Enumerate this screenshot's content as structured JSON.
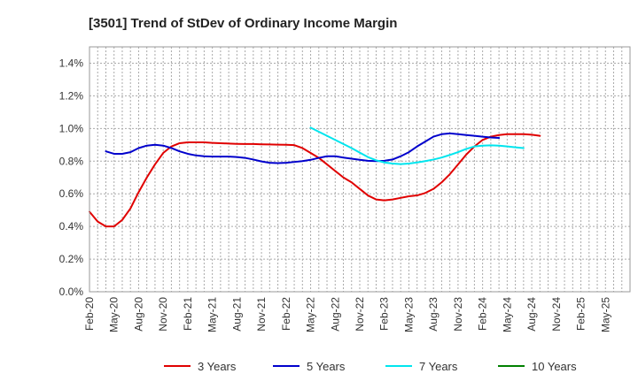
{
  "chart_data": {
    "type": "line",
    "title": "[3501]  Trend of StDev of Ordinary Income Margin",
    "xlabel": "",
    "ylabel": "",
    "ylim": [
      0,
      1.5
    ],
    "yticks": [
      0,
      0.2,
      0.4,
      0.6,
      0.8,
      1.0,
      1.2,
      1.4
    ],
    "ytick_labels": [
      "0.0%",
      "0.2%",
      "0.4%",
      "0.6%",
      "0.8%",
      "1.0%",
      "1.2%",
      "1.4%"
    ],
    "x_tick_labels": [
      "Feb-20",
      "May-20",
      "Aug-20",
      "Nov-20",
      "Feb-21",
      "May-21",
      "Aug-21",
      "Nov-21",
      "Feb-22",
      "May-22",
      "Aug-22",
      "Nov-22",
      "Feb-23",
      "May-23",
      "Aug-23",
      "Nov-23",
      "Feb-24",
      "May-24",
      "Aug-24",
      "Nov-24",
      "Feb-25",
      "May-25"
    ],
    "grid": true,
    "legend_position": "bottom",
    "series": [
      {
        "name": "3 Years",
        "color": "#e00000",
        "start_index": 0,
        "values": [
          0.49,
          0.43,
          0.4,
          0.4,
          0.44,
          0.51,
          0.61,
          0.7,
          0.78,
          0.85,
          0.89,
          0.91,
          0.915,
          0.915,
          0.915,
          0.912,
          0.91,
          0.908,
          0.906,
          0.905,
          0.905,
          0.903,
          0.902,
          0.901,
          0.9,
          0.898,
          0.88,
          0.85,
          0.82,
          0.78,
          0.74,
          0.7,
          0.67,
          0.63,
          0.59,
          0.565,
          0.56,
          0.565,
          0.575,
          0.585,
          0.59,
          0.605,
          0.63,
          0.67,
          0.72,
          0.78,
          0.84,
          0.89,
          0.93,
          0.95,
          0.96,
          0.965,
          0.965,
          0.965,
          0.962,
          0.955
        ]
      },
      {
        "name": "5 Years",
        "color": "#0000cc",
        "start_index": 2,
        "values": [
          0.86,
          0.845,
          0.845,
          0.855,
          0.88,
          0.895,
          0.9,
          0.895,
          0.88,
          0.86,
          0.845,
          0.835,
          0.83,
          0.828,
          0.828,
          0.828,
          0.825,
          0.82,
          0.81,
          0.798,
          0.79,
          0.788,
          0.79,
          0.795,
          0.8,
          0.808,
          0.82,
          0.83,
          0.83,
          0.822,
          0.815,
          0.808,
          0.802,
          0.8,
          0.802,
          0.81,
          0.83,
          0.855,
          0.89,
          0.92,
          0.95,
          0.965,
          0.97,
          0.965,
          0.96,
          0.955,
          0.95,
          0.945,
          0.942
        ]
      },
      {
        "name": "7 Years",
        "color": "#00e5ee",
        "start_index": 27,
        "values": [
          1.005,
          0.98,
          0.955,
          0.93,
          0.905,
          0.88,
          0.852,
          0.825,
          0.805,
          0.792,
          0.785,
          0.782,
          0.785,
          0.792,
          0.8,
          0.81,
          0.822,
          0.838,
          0.855,
          0.875,
          0.89,
          0.895,
          0.897,
          0.895,
          0.89,
          0.885,
          0.88
        ]
      },
      {
        "name": "10 Years",
        "color": "#008000",
        "start_index": 0,
        "values": []
      }
    ]
  }
}
